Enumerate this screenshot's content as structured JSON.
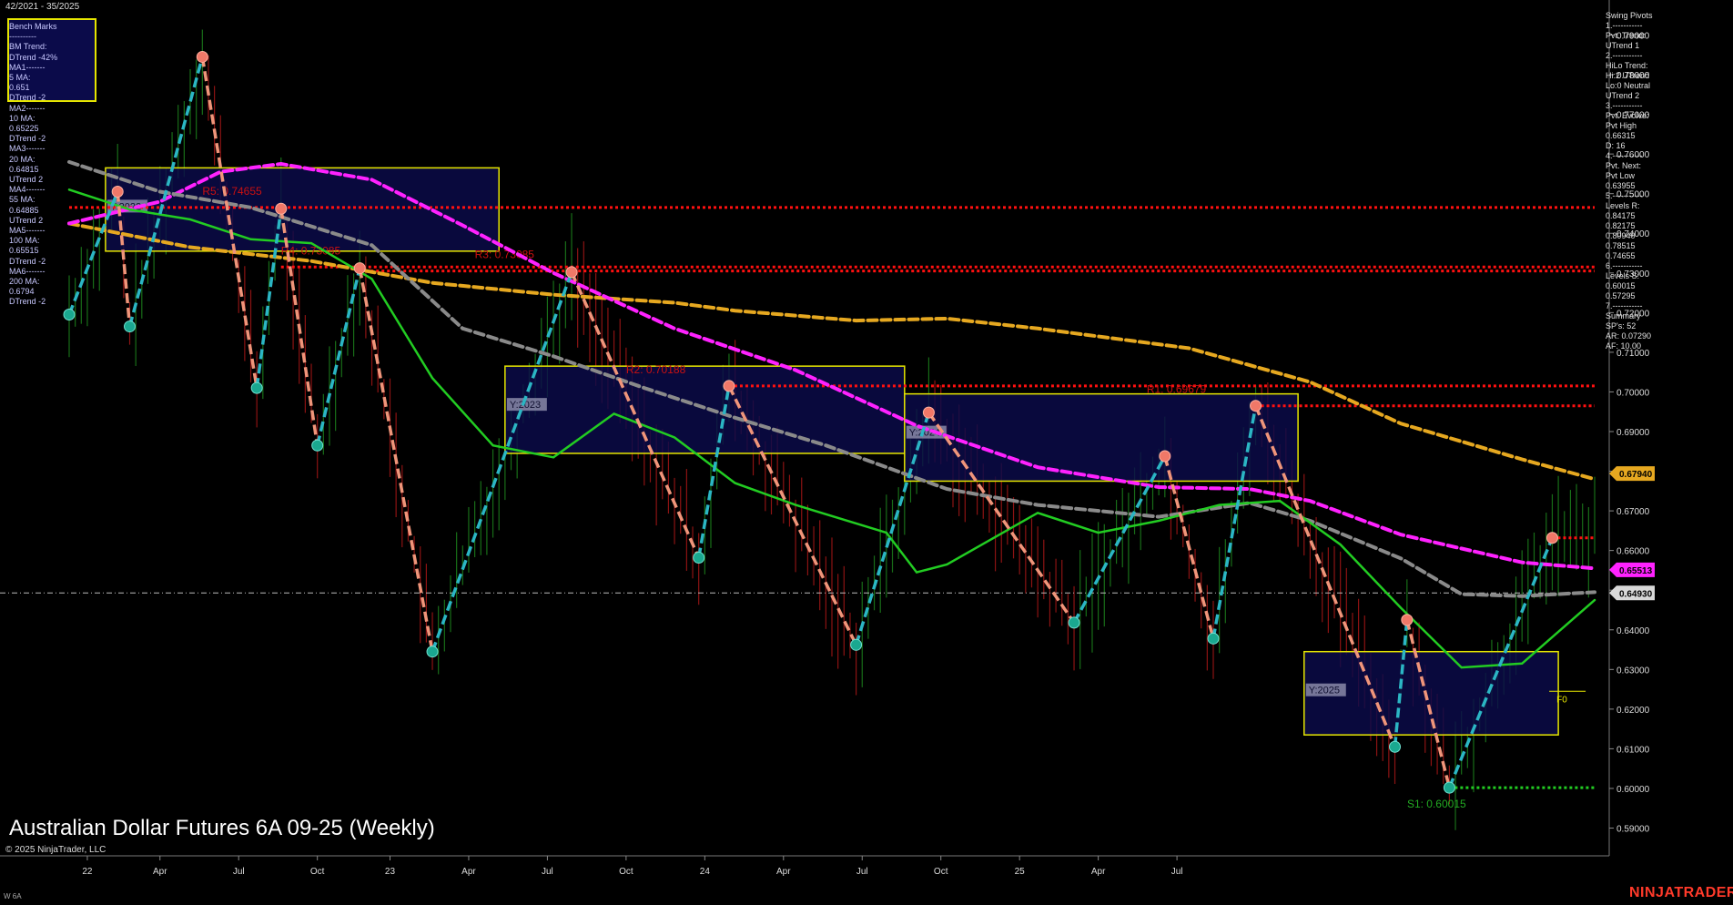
{
  "header": {
    "date_range": "42/2021 - 35/2025"
  },
  "title": "Australian Dollar Futures 6A 09-25 (Weekly)",
  "copyright": "© 2025 NinjaTrader, LLC",
  "instrument_tag": "W 6A",
  "logo": "NINJATRADER",
  "left_panel": {
    "lines": [
      "Bench Marks",
      "----------",
      "BM Trend:",
      "DTrend -42%",
      "MA1-------",
      "5 MA:",
      "0.651",
      "DTrend -2",
      "MA2-------",
      "10 MA:",
      "0.65225",
      "DTrend -2",
      "MA3-------",
      "20 MA:",
      "0.64815",
      "UTrend 2",
      "MA4-------",
      "55 MA:",
      "0.64885",
      "UTrend 2",
      "MA5-------",
      "100 MA:",
      "0.65515",
      "DTrend -2",
      "MA6-------",
      "200 MA:",
      "0.6794",
      "DTrend -2"
    ]
  },
  "right_panel": {
    "lines": [
      "Swing Pivots",
      "1.-----------",
      "Pvt. Trend:",
      "UTrend 1",
      "2.-----------",
      "HiLo Trend:",
      "Hi:2 UTrend",
      "Lo:0 Neutral",
      "UTrend 2",
      "3.-----------",
      "Pvt. Evolve:",
      "Pvt High",
      "0.66315",
      "D: 16",
      "4.-----------",
      "Pvt. Next:",
      "Pvt Low",
      "0.63955",
      "5.-----------",
      "Levels R:",
      "0.84175",
      "0.82175",
      "0.80940",
      "0.78515",
      "0.74655",
      "6.-----------",
      "Levels S:",
      "0.60015",
      "0.57295",
      "7.-----------",
      "Summary",
      "SP's: 52",
      "AR: 0.07290",
      "AF: 10.00"
    ]
  },
  "chart_data": {
    "type": "line",
    "title": "Australian Dollar Futures 6A 09-25 (Weekly)",
    "timeframe": "Weekly",
    "x_tick_labels": [
      "22",
      "Apr",
      "Jul",
      "Oct",
      "23",
      "Apr",
      "Jul",
      "Oct",
      "24",
      "Apr",
      "Jul",
      "Oct",
      "25",
      "Apr",
      "Jul"
    ],
    "y_range": [
      0.583,
      0.797
    ],
    "y_ticks": [
      0.79,
      0.78,
      0.77,
      0.76,
      0.75,
      0.74,
      0.73,
      0.72,
      0.71,
      0.7,
      0.69,
      0.68,
      0.67,
      0.66,
      0.65,
      0.64,
      0.63,
      0.62,
      0.61,
      0.6,
      0.59
    ],
    "y_tick_labels": [
      "0.79000",
      "0.78000",
      "0.77000",
      "0.76000",
      "0.75000",
      "0.74000",
      "0.73000",
      "0.72000",
      "0.71000",
      "0.70000",
      "0.69000",
      "0.68000",
      "0.67000",
      "0.66000",
      "0.65000",
      "0.64000",
      "0.63000",
      "0.62000",
      "0.61000",
      "0.60000",
      "0.59000"
    ],
    "price_badges": [
      {
        "value": 0.6794,
        "label": "0.67940",
        "color": "#e6a820"
      },
      {
        "value": 0.65513,
        "label": "0.65513",
        "color": "#ff22ff"
      },
      {
        "value": 0.6493,
        "label": "0.64930",
        "color": "#d8d8d8"
      }
    ],
    "current_price": 0.6493,
    "swing_pivots": [
      {
        "t": 0.0,
        "price": 0.7195,
        "type": "low"
      },
      {
        "t": 8.0,
        "price": 0.7505,
        "type": "high"
      },
      {
        "t": 10.0,
        "price": 0.7165,
        "type": "low"
      },
      {
        "t": 22.0,
        "price": 0.7845,
        "type": "high"
      },
      {
        "t": 31.0,
        "price": 0.701,
        "type": "low"
      },
      {
        "t": 35.0,
        "price": 0.7462,
        "type": "high"
      },
      {
        "t": 41.0,
        "price": 0.6865,
        "type": "low"
      },
      {
        "t": 48.0,
        "price": 0.7312,
        "type": "high"
      },
      {
        "t": 60.0,
        "price": 0.6345,
        "type": "low"
      },
      {
        "t": 83.0,
        "price": 0.7302,
        "type": "high"
      },
      {
        "t": 104.0,
        "price": 0.6582,
        "type": "low"
      },
      {
        "t": 109.0,
        "price": 0.7015,
        "type": "high"
      },
      {
        "t": 130.0,
        "price": 0.6362,
        "type": "low"
      },
      {
        "t": 142.0,
        "price": 0.6948,
        "type": "high"
      },
      {
        "t": 166.0,
        "price": 0.6418,
        "type": "low"
      },
      {
        "t": 181.0,
        "price": 0.6838,
        "type": "high"
      },
      {
        "t": 189.0,
        "price": 0.6378,
        "type": "low"
      },
      {
        "t": 196.0,
        "price": 0.6965,
        "type": "high"
      },
      {
        "t": 219.0,
        "price": 0.6105,
        "type": "low"
      },
      {
        "t": 221.0,
        "price": 0.6425,
        "type": "high"
      },
      {
        "t": 228.0,
        "price": 0.6002,
        "type": "low"
      },
      {
        "t": 245.0,
        "price": 0.6632,
        "type": "high"
      }
    ],
    "moving_averages": [
      {
        "name": "MA6 200",
        "color": "#e6a820",
        "style": "dash",
        "points": [
          [
            0,
            0.7425
          ],
          [
            20,
            0.7365
          ],
          [
            40,
            0.733
          ],
          [
            60,
            0.7275
          ],
          [
            80,
            0.7245
          ],
          [
            100,
            0.7225
          ],
          [
            110,
            0.7205
          ],
          [
            130,
            0.718
          ],
          [
            145,
            0.7185
          ],
          [
            160,
            0.716
          ],
          [
            185,
            0.711
          ],
          [
            205,
            0.7025
          ],
          [
            220,
            0.692
          ],
          [
            240,
            0.683
          ],
          [
            252,
            0.678
          ]
        ]
      },
      {
        "name": "MA5 100",
        "color": "#ff22ff",
        "style": "dash",
        "points": [
          [
            0,
            0.7425
          ],
          [
            15,
            0.748
          ],
          [
            25,
            0.7555
          ],
          [
            35,
            0.7575
          ],
          [
            50,
            0.7535
          ],
          [
            65,
            0.742
          ],
          [
            80,
            0.73
          ],
          [
            100,
            0.716
          ],
          [
            120,
            0.7055
          ],
          [
            140,
            0.6915
          ],
          [
            160,
            0.681
          ],
          [
            180,
            0.676
          ],
          [
            195,
            0.6755
          ],
          [
            205,
            0.6725
          ],
          [
            220,
            0.664
          ],
          [
            240,
            0.657
          ],
          [
            252,
            0.6555
          ]
        ]
      },
      {
        "name": "MA4 55",
        "color": "#8a8a8a",
        "style": "dash",
        "points": [
          [
            0,
            0.758
          ],
          [
            15,
            0.7505
          ],
          [
            30,
            0.7465
          ],
          [
            50,
            0.737
          ],
          [
            65,
            0.716
          ],
          [
            80,
            0.709
          ],
          [
            95,
            0.701
          ],
          [
            110,
            0.6935
          ],
          [
            125,
            0.6865
          ],
          [
            145,
            0.6755
          ],
          [
            160,
            0.6715
          ],
          [
            180,
            0.6685
          ],
          [
            195,
            0.672
          ],
          [
            205,
            0.6675
          ],
          [
            220,
            0.658
          ],
          [
            230,
            0.649
          ],
          [
            240,
            0.6485
          ],
          [
            252,
            0.6495
          ]
        ]
      },
      {
        "name": "MA3 20",
        "color": "#22cc22",
        "style": "solid",
        "points": [
          [
            0,
            0.751
          ],
          [
            10,
            0.746
          ],
          [
            20,
            0.7435
          ],
          [
            30,
            0.7385
          ],
          [
            40,
            0.7375
          ],
          [
            50,
            0.7285
          ],
          [
            60,
            0.7035
          ],
          [
            70,
            0.6865
          ],
          [
            80,
            0.6835
          ],
          [
            90,
            0.6945
          ],
          [
            100,
            0.6885
          ],
          [
            110,
            0.677
          ],
          [
            120,
            0.6715
          ],
          [
            135,
            0.6645
          ],
          [
            140,
            0.6545
          ],
          [
            145,
            0.6565
          ],
          [
            160,
            0.6695
          ],
          [
            170,
            0.6645
          ],
          [
            180,
            0.6675
          ],
          [
            190,
            0.6715
          ],
          [
            200,
            0.6725
          ],
          [
            210,
            0.6615
          ],
          [
            220,
            0.6455
          ],
          [
            230,
            0.6305
          ],
          [
            240,
            0.6315
          ],
          [
            252,
            0.6475
          ]
        ]
      }
    ],
    "year_boxes": [
      {
        "label": "Y:2022",
        "t0": 6,
        "t1": 71,
        "y_top": 0.7565,
        "y_bot": 0.7355
      },
      {
        "label": "Y:2023",
        "t0": 72,
        "t1": 138,
        "y_top": 0.7065,
        "y_bot": 0.6845
      },
      {
        "label": "Y:2024",
        "t0": 138,
        "t1": 203,
        "y_top": 0.6995,
        "y_bot": 0.6775
      },
      {
        "label": "Y:2025",
        "t0": 204,
        "t1": 246,
        "y_top": 0.6345,
        "y_bot": 0.6135
      }
    ],
    "resistance_levels": [
      {
        "label": "R5: 0.74655",
        "value": 0.7465,
        "t0": 0,
        "t1": 252,
        "label_t": 22
      },
      {
        "label": "R4: 0.73085",
        "value": 0.7315,
        "t0": 35,
        "t1": 252,
        "label_t": 35
      },
      {
        "label": "R3: 0.73085",
        "value": 0.7305,
        "t0": 48,
        "t1": 252,
        "label_t": 67
      },
      {
        "label": "R2: 0.70188",
        "value": 0.7015,
        "t0": 109,
        "t1": 252,
        "label_t": 92
      },
      {
        "label": "R1: 0.69679",
        "value": 0.6965,
        "t0": 196,
        "t1": 252,
        "label_t": 178
      },
      {
        "label": "",
        "value": 0.6632,
        "t0": 245,
        "t1": 252,
        "label_t": 245
      }
    ],
    "support_levels": [
      {
        "label": "S1: 0.60015",
        "value": 0.6002,
        "t0": 228,
        "t1": 252,
        "label_t": 212
      }
    ],
    "fib_marker": {
      "label": "F0",
      "t": 246,
      "value": 0.6245
    }
  }
}
